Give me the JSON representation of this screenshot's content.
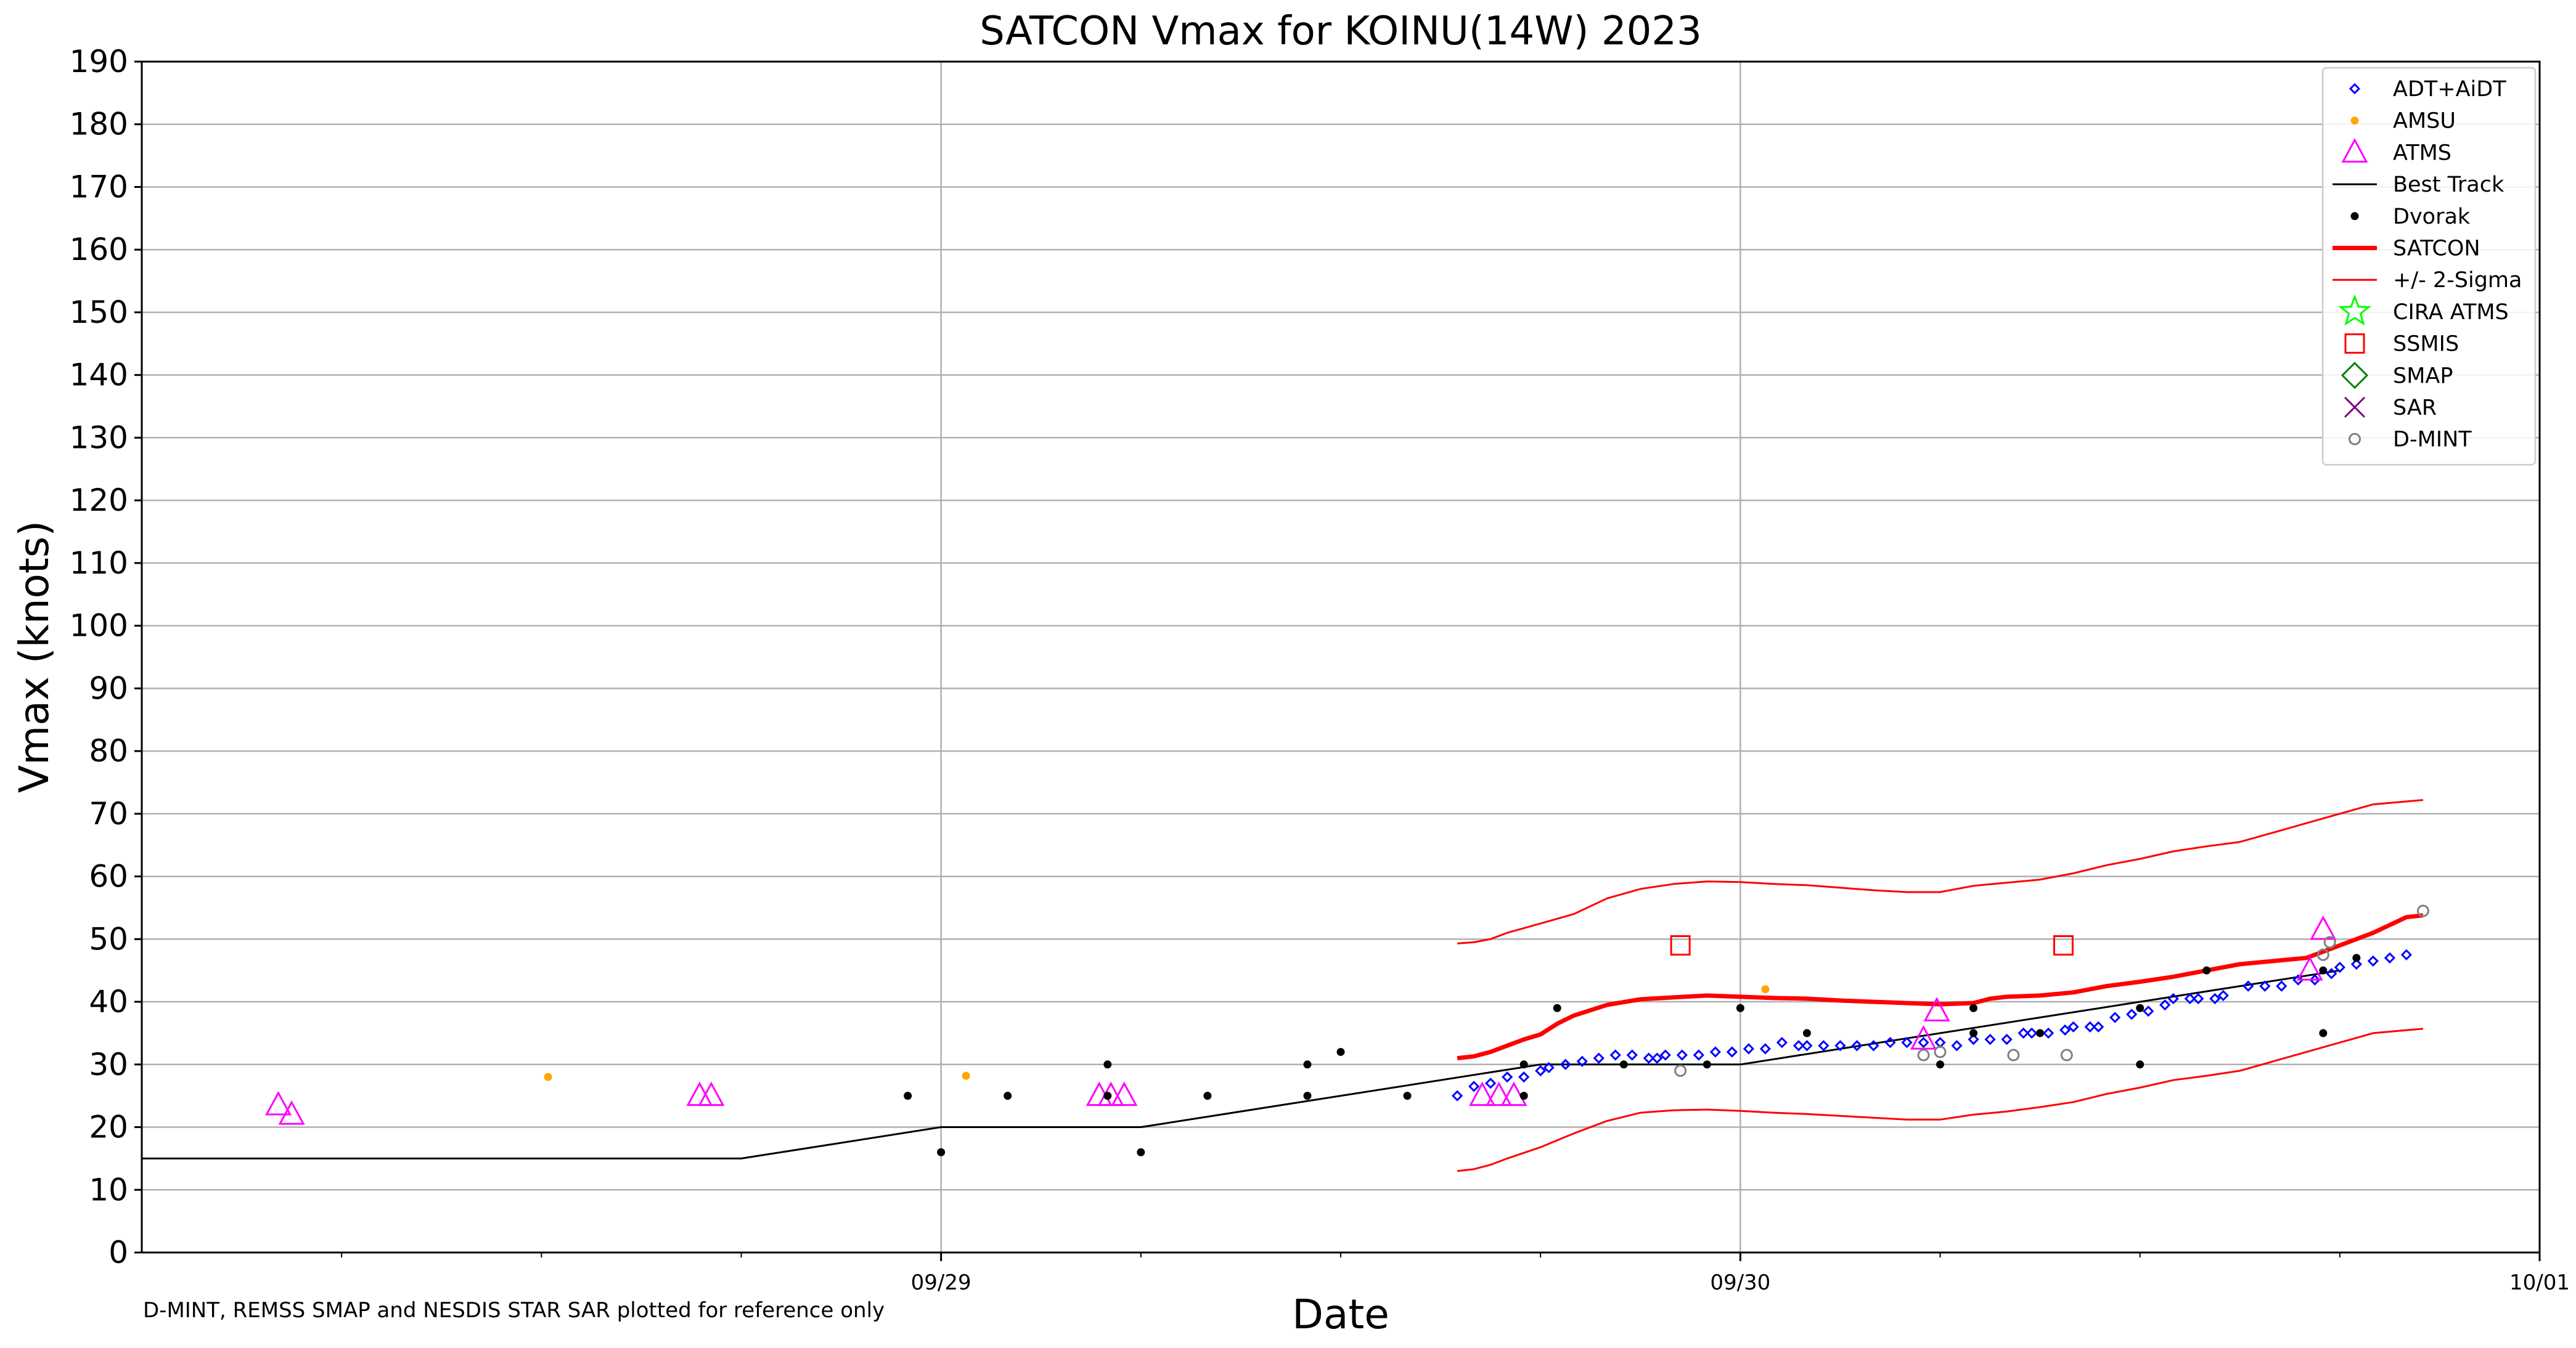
{
  "chart_data": {
    "type": "scatter",
    "title": "SATCON Vmax for KOINU(14W) 2023",
    "xlabel": "Date",
    "ylabel": "Vmax (knots)",
    "footnote": "D-MINT, REMSS SMAP and NESDIS STAR SAR plotted for reference only",
    "x_unit": "hours (UTC) after 09/28 00:00",
    "xlim": [
      0,
      72
    ],
    "ylim": [
      0,
      190
    ],
    "x_major_ticks": [
      {
        "x": 24,
        "label": "09/29"
      },
      {
        "x": 48,
        "label": "09/30"
      },
      {
        "x": 72,
        "label": "10/01"
      }
    ],
    "x_minor_ticks": [
      6,
      12,
      18,
      30,
      36,
      42,
      54,
      60,
      66
    ],
    "y_ticks": [
      0,
      10,
      20,
      30,
      40,
      50,
      60,
      70,
      80,
      90,
      100,
      110,
      120,
      130,
      140,
      150,
      160,
      170,
      180,
      190
    ],
    "grid": true,
    "legend_position": "top-right",
    "series": [
      {
        "name": "ADT+AiDT",
        "marker": "diamond-open",
        "color": "#0000ff",
        "points": [
          [
            39.5,
            25
          ],
          [
            40,
            26.5
          ],
          [
            40.5,
            27
          ],
          [
            41,
            28
          ],
          [
            41.5,
            28
          ],
          [
            42,
            29
          ],
          [
            42.25,
            29.5
          ],
          [
            42.75,
            30
          ],
          [
            43.25,
            30.5
          ],
          [
            43.75,
            31
          ],
          [
            44.25,
            31.5
          ],
          [
            44.75,
            31.5
          ],
          [
            45.25,
            31
          ],
          [
            45.5,
            31
          ],
          [
            45.75,
            31.5
          ],
          [
            46.25,
            31.5
          ],
          [
            46.75,
            31.5
          ],
          [
            47.25,
            32
          ],
          [
            47.75,
            32
          ],
          [
            48.25,
            32.5
          ],
          [
            48.75,
            32.5
          ],
          [
            49.25,
            33.5
          ],
          [
            49.75,
            33
          ],
          [
            50,
            33
          ],
          [
            50.5,
            33
          ],
          [
            51,
            33
          ],
          [
            51.5,
            33
          ],
          [
            52,
            33
          ],
          [
            52.5,
            33.5
          ],
          [
            53,
            33.5
          ],
          [
            53.5,
            33.5
          ],
          [
            54,
            33.5
          ],
          [
            54.5,
            33
          ],
          [
            55,
            34
          ],
          [
            55.5,
            34
          ],
          [
            56,
            34
          ],
          [
            56.5,
            35
          ],
          [
            56.75,
            35
          ],
          [
            57.25,
            35
          ],
          [
            57.75,
            35.5
          ],
          [
            58,
            36
          ],
          [
            58.5,
            36
          ],
          [
            58.75,
            36
          ],
          [
            59.25,
            37.5
          ],
          [
            59.75,
            38
          ],
          [
            60.25,
            38.5
          ],
          [
            60.75,
            39.5
          ],
          [
            61,
            40.5
          ],
          [
            61.5,
            40.5
          ],
          [
            61.75,
            40.5
          ],
          [
            62.25,
            40.5
          ],
          [
            62.5,
            41
          ],
          [
            63.25,
            42.5
          ],
          [
            63.75,
            42.5
          ],
          [
            64.25,
            42.5
          ],
          [
            64.75,
            43.5
          ],
          [
            65.25,
            43.5
          ],
          [
            65.75,
            44.5
          ],
          [
            66,
            45.5
          ],
          [
            66.5,
            46
          ],
          [
            67,
            46.5
          ],
          [
            67.5,
            47
          ],
          [
            68,
            47.5
          ]
        ]
      },
      {
        "name": "AMSU",
        "marker": "dot",
        "color": "#ffa500",
        "points": [
          [
            12.2,
            28
          ],
          [
            24.75,
            28.2
          ],
          [
            48.75,
            42
          ]
        ]
      },
      {
        "name": "ATMS",
        "marker": "triangle-open",
        "color": "#ff00ff",
        "points": [
          [
            4.1,
            23.5
          ],
          [
            4.5,
            22
          ],
          [
            16.75,
            25
          ],
          [
            17.1,
            25
          ],
          [
            28.75,
            25
          ],
          [
            29.1,
            25
          ],
          [
            29.5,
            25
          ],
          [
            40.25,
            25
          ],
          [
            40.75,
            25
          ],
          [
            41.2,
            25
          ],
          [
            53.5,
            34
          ],
          [
            53.9,
            38.5
          ],
          [
            65.1,
            45
          ],
          [
            65.5,
            51.5
          ]
        ]
      },
      {
        "name": "Best Track",
        "line": "solid",
        "color": "#000000",
        "points": [
          [
            0,
            15
          ],
          [
            18,
            15
          ],
          [
            24,
            20
          ],
          [
            30,
            20
          ],
          [
            42,
            30
          ],
          [
            48,
            30
          ],
          [
            66,
            45
          ]
        ]
      },
      {
        "name": "Dvorak",
        "marker": "dot",
        "color": "#000000",
        "points": [
          [
            23,
            25
          ],
          [
            24,
            16
          ],
          [
            26,
            25
          ],
          [
            29,
            30
          ],
          [
            29,
            25
          ],
          [
            30,
            16
          ],
          [
            32,
            25
          ],
          [
            35,
            30
          ],
          [
            35,
            25
          ],
          [
            36,
            32
          ],
          [
            38,
            25
          ],
          [
            41.5,
            25
          ],
          [
            41.5,
            30
          ],
          [
            42.5,
            39
          ],
          [
            44.5,
            30
          ],
          [
            48,
            39
          ],
          [
            47,
            30
          ],
          [
            50,
            35
          ],
          [
            54,
            30
          ],
          [
            55,
            39
          ],
          [
            55,
            35
          ],
          [
            57,
            35
          ],
          [
            60,
            39
          ],
          [
            60,
            30
          ],
          [
            62,
            45
          ],
          [
            65.5,
            45
          ],
          [
            65.5,
            35
          ],
          [
            66.5,
            47
          ]
        ]
      },
      {
        "name": "SATCON",
        "line": "solid-thick",
        "color": "#ff0000",
        "points": [
          [
            39.5,
            31
          ],
          [
            40,
            31.3
          ],
          [
            40.5,
            32
          ],
          [
            41,
            33
          ],
          [
            41.5,
            34
          ],
          [
            42,
            34.8
          ],
          [
            42.5,
            36.5
          ],
          [
            43,
            37.8
          ],
          [
            44,
            39.5
          ],
          [
            45,
            40.4
          ],
          [
            46,
            40.7
          ],
          [
            47,
            41
          ],
          [
            48,
            40.8
          ],
          [
            49,
            40.6
          ],
          [
            50,
            40.5
          ],
          [
            51,
            40.2
          ],
          [
            52,
            40
          ],
          [
            53,
            39.8
          ],
          [
            54,
            39.6
          ],
          [
            55,
            39.8
          ],
          [
            55.5,
            40.5
          ],
          [
            56,
            40.8
          ],
          [
            57,
            41
          ],
          [
            58,
            41.5
          ],
          [
            59,
            42.5
          ],
          [
            60,
            43.2
          ],
          [
            61,
            44
          ],
          [
            62,
            45
          ],
          [
            63,
            46
          ],
          [
            64,
            46.5
          ],
          [
            65,
            47
          ],
          [
            66,
            49
          ],
          [
            67,
            51
          ],
          [
            68,
            53.5
          ],
          [
            68.5,
            53.8
          ]
        ]
      },
      {
        "name": "+/- 2-Sigma",
        "line": "solid-thin",
        "color": "#ff0000",
        "upper": [
          [
            39.5,
            49.3
          ],
          [
            40,
            49.5
          ],
          [
            40.5,
            50
          ],
          [
            41,
            51
          ],
          [
            42,
            52.5
          ],
          [
            43,
            54
          ],
          [
            44,
            56.5
          ],
          [
            45,
            58
          ],
          [
            46,
            58.8
          ],
          [
            47,
            59.2
          ],
          [
            48,
            59.1
          ],
          [
            49,
            58.8
          ],
          [
            50,
            58.6
          ],
          [
            51,
            58.2
          ],
          [
            52,
            57.8
          ],
          [
            53,
            57.5
          ],
          [
            54,
            57.5
          ],
          [
            55,
            58.5
          ],
          [
            56,
            59
          ],
          [
            57,
            59.5
          ],
          [
            58,
            60.5
          ],
          [
            59,
            61.8
          ],
          [
            60,
            62.8
          ],
          [
            61,
            64
          ],
          [
            62,
            64.8
          ],
          [
            63,
            65.5
          ],
          [
            64,
            67
          ],
          [
            65,
            68.5
          ],
          [
            66,
            70
          ],
          [
            67,
            71.5
          ],
          [
            68.5,
            72.2
          ]
        ],
        "lower": [
          [
            39.5,
            13
          ],
          [
            40,
            13.3
          ],
          [
            40.5,
            14
          ],
          [
            41,
            15
          ],
          [
            42,
            16.8
          ],
          [
            43,
            19
          ],
          [
            44,
            21
          ],
          [
            45,
            22.3
          ],
          [
            46,
            22.7
          ],
          [
            47,
            22.8
          ],
          [
            48,
            22.6
          ],
          [
            49,
            22.3
          ],
          [
            50,
            22.1
          ],
          [
            51,
            21.8
          ],
          [
            52,
            21.5
          ],
          [
            53,
            21.2
          ],
          [
            54,
            21.2
          ],
          [
            55,
            22
          ],
          [
            56,
            22.5
          ],
          [
            57,
            23.2
          ],
          [
            58,
            24
          ],
          [
            59,
            25.3
          ],
          [
            60,
            26.3
          ],
          [
            61,
            27.5
          ],
          [
            62,
            28.2
          ],
          [
            63,
            29
          ],
          [
            64,
            30.5
          ],
          [
            65,
            32
          ],
          [
            66,
            33.5
          ],
          [
            67,
            35
          ],
          [
            68.5,
            35.7
          ]
        ]
      },
      {
        "name": "CIRA ATMS",
        "marker": "star-open",
        "color": "#00ff00",
        "points": []
      },
      {
        "name": "SSMIS",
        "marker": "square-open",
        "color": "#ff0000",
        "points": [
          [
            46.2,
            49
          ],
          [
            57.7,
            49
          ]
        ]
      },
      {
        "name": "SMAP",
        "marker": "diamond-open-large",
        "color": "#008000",
        "points": []
      },
      {
        "name": "SAR",
        "marker": "x",
        "color": "#800080",
        "points": []
      },
      {
        "name": "D-MINT",
        "marker": "circle-open",
        "color": "#808080",
        "points": [
          [
            46.2,
            29
          ],
          [
            53.5,
            31.5
          ],
          [
            54,
            32
          ],
          [
            56.2,
            31.5
          ],
          [
            57.8,
            31.5
          ],
          [
            65.5,
            47.5
          ],
          [
            65.7,
            49.5
          ],
          [
            68.5,
            54.5
          ]
        ]
      }
    ]
  }
}
